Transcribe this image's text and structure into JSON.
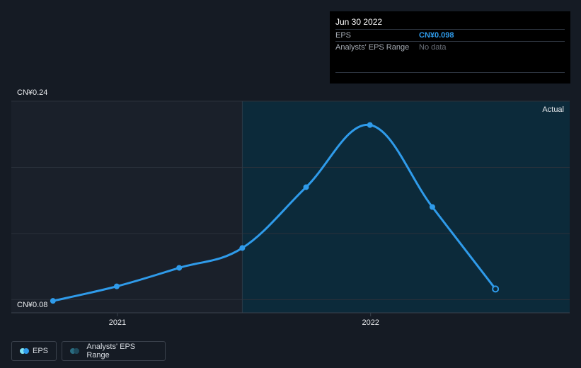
{
  "tooltip": {
    "date": "Jun 30 2022",
    "eps_label": "EPS",
    "eps_value": "CN¥0.098",
    "range_label": "Analysts' EPS Range",
    "range_value": "No data"
  },
  "legend": {
    "eps": "EPS",
    "range": "Analysts' EPS Range"
  },
  "colors": {
    "background": "#151b24",
    "actual_region": "#0c2a3a",
    "eps_line": "#2f9bea",
    "range_swatch": "#1f5d74",
    "eps_swatch": "#7fe2f2"
  },
  "chart_data": {
    "type": "line",
    "ylim": [
      0.08,
      0.24
    ],
    "y_tick_labels": [
      "CN¥0.24",
      "CN¥0.08"
    ],
    "x_tick_labels": [
      {
        "label": "2021",
        "date": "2021-01-01"
      },
      {
        "label": "2022",
        "date": "2022-01-01"
      }
    ],
    "xlim": [
      "2020-08-01",
      "2022-10-15"
    ],
    "actual_start": "2021-06-30",
    "region_label": "Actual",
    "series": [
      {
        "name": "EPS",
        "points": [
          {
            "date": "2020-09-30",
            "value": 0.089
          },
          {
            "date": "2020-12-31",
            "value": 0.1
          },
          {
            "date": "2021-03-31",
            "value": 0.114
          },
          {
            "date": "2021-06-30",
            "value": 0.129
          },
          {
            "date": "2021-09-30",
            "value": 0.175
          },
          {
            "date": "2021-12-31",
            "value": 0.222
          },
          {
            "date": "2022-03-31",
            "value": 0.16
          },
          {
            "date": "2022-06-30",
            "value": 0.098
          }
        ]
      }
    ]
  }
}
